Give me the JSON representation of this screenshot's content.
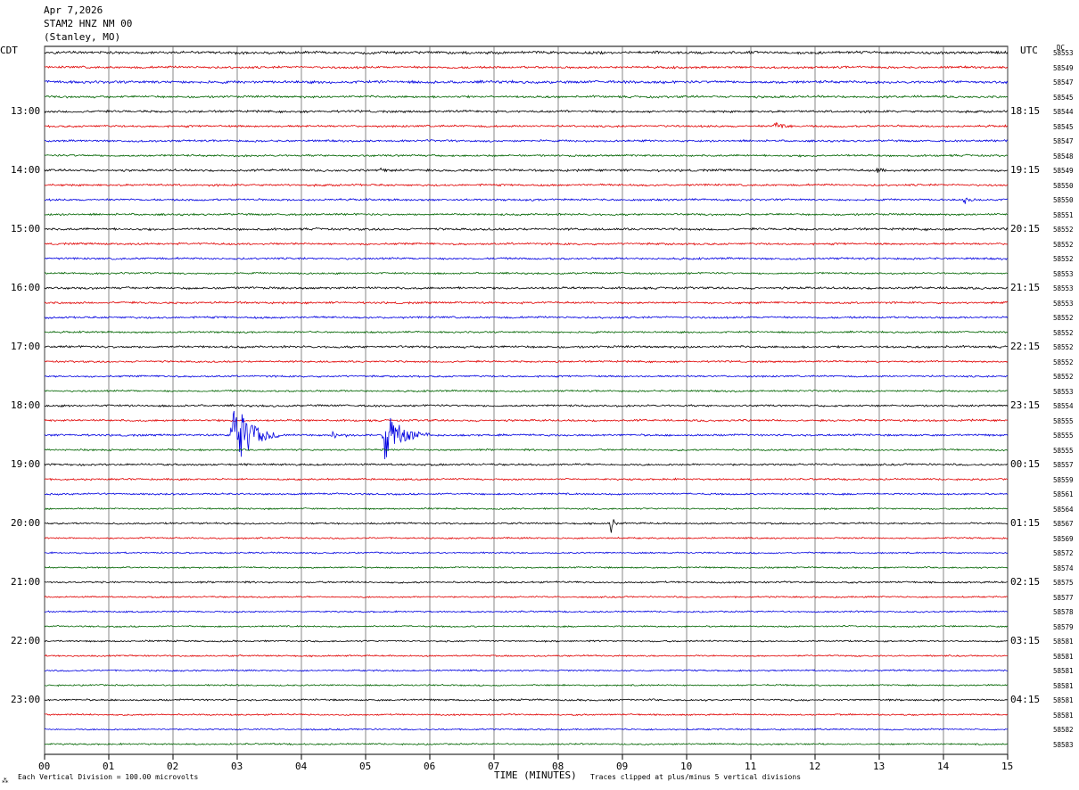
{
  "header": {
    "date": "Apr 7,2026",
    "station": "STAM2 HNZ NM 00",
    "location": "(Stanley, MO)"
  },
  "axes": {
    "left_label": "CDT",
    "right_label": "UTC",
    "dc_label": "DC",
    "xlabel": "TIME (MINUTES)"
  },
  "footer": {
    "scale_note": "Each Vertical Division =  100.00 microvolts",
    "clip_note": "Traces clipped at plus/minus 5 vertical divisions"
  },
  "colors": {
    "trace_cycle": [
      "#000000",
      "#e00000",
      "#0000e0",
      "#006400"
    ],
    "grid": "#000000"
  },
  "chart_data": {
    "type": "line",
    "title": "STAM2 HNZ NM 00 (Stanley, MO) Apr 7,2026",
    "xlabel": "TIME (MINUTES)",
    "xlim": [
      0,
      15
    ],
    "x_ticks": [
      "00",
      "01",
      "02",
      "03",
      "04",
      "05",
      "06",
      "07",
      "08",
      "09",
      "10",
      "11",
      "12",
      "13",
      "14",
      "15"
    ],
    "rows": 48,
    "minutes_per_row": 15,
    "left_time_labels": [
      {
        "row": 4,
        "label": "13:00"
      },
      {
        "row": 8,
        "label": "14:00"
      },
      {
        "row": 12,
        "label": "15:00"
      },
      {
        "row": 16,
        "label": "16:00"
      },
      {
        "row": 20,
        "label": "17:00"
      },
      {
        "row": 24,
        "label": "18:00"
      },
      {
        "row": 28,
        "label": "19:00"
      },
      {
        "row": 32,
        "label": "20:00"
      },
      {
        "row": 36,
        "label": "21:00"
      },
      {
        "row": 40,
        "label": "22:00"
      },
      {
        "row": 44,
        "label": "23:00"
      }
    ],
    "right_time_labels": [
      {
        "row": 4,
        "label": "18:15"
      },
      {
        "row": 8,
        "label": "19:15"
      },
      {
        "row": 12,
        "label": "20:15"
      },
      {
        "row": 16,
        "label": "21:15"
      },
      {
        "row": 20,
        "label": "22:15"
      },
      {
        "row": 24,
        "label": "23:15"
      },
      {
        "row": 28,
        "label": "00:15"
      },
      {
        "row": 32,
        "label": "01:15"
      },
      {
        "row": 36,
        "label": "02:15"
      },
      {
        "row": 40,
        "label": "03:15"
      },
      {
        "row": 44,
        "label": "04:15"
      }
    ],
    "dc_offsets": [
      "58553",
      "58549",
      "58547",
      "58545",
      "58544",
      "58545",
      "58547",
      "58548",
      "58549",
      "58550",
      "58550",
      "58551",
      "58552",
      "58552",
      "58552",
      "58553",
      "58553",
      "58553",
      "58552",
      "58552",
      "58552",
      "58552",
      "58552",
      "58553",
      "58554",
      "58555",
      "58555",
      "58555",
      "58557",
      "58559",
      "58561",
      "58564",
      "58567",
      "58569",
      "58572",
      "58574",
      "58575",
      "58577",
      "58578",
      "58579",
      "58581",
      "58581",
      "58581",
      "58581",
      "58581",
      "58581",
      "58582",
      "58583"
    ],
    "noise_level": [
      1.2,
      1.0,
      1.2,
      1.0,
      1.0,
      0.9,
      0.9,
      0.9,
      1.0,
      0.9,
      0.9,
      0.9,
      1.0,
      0.9,
      0.9,
      0.8,
      1.0,
      0.9,
      0.9,
      0.8,
      1.0,
      0.8,
      0.8,
      0.8,
      0.9,
      0.9,
      0.9,
      0.8,
      0.9,
      0.8,
      0.8,
      0.7,
      0.8,
      0.7,
      0.7,
      0.7,
      0.8,
      0.7,
      0.7,
      0.7,
      0.7,
      0.7,
      0.7,
      0.7,
      0.8,
      0.7,
      0.7,
      0.7
    ],
    "events": [
      {
        "row": 5,
        "minute": 11.4,
        "amplitude": 5,
        "duration": 0.35
      },
      {
        "row": 8,
        "minute": 5.25,
        "amplitude": 4,
        "duration": 0.3
      },
      {
        "row": 8,
        "minute": 13.0,
        "amplitude": 3,
        "duration": 0.2
      },
      {
        "row": 10,
        "minute": 14.35,
        "amplitude": 4,
        "duration": 0.3
      },
      {
        "row": 26,
        "minute": 2.95,
        "amplitude": 40,
        "duration": 0.75
      },
      {
        "row": 26,
        "minute": 4.5,
        "amplitude": 4,
        "duration": 0.6
      },
      {
        "row": 26,
        "minute": 5.3,
        "amplitude": 28,
        "duration": 0.7
      },
      {
        "row": 32,
        "minute": 8.85,
        "amplitude": 12,
        "duration": 0.08
      }
    ]
  }
}
